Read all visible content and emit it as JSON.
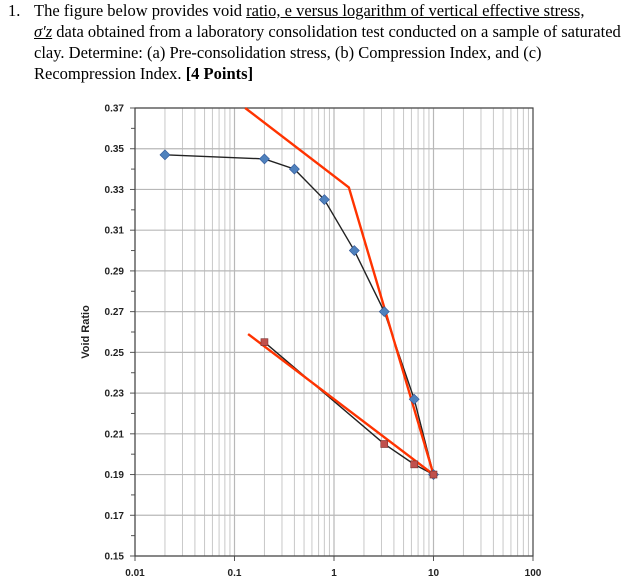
{
  "question": {
    "number": "1.",
    "text_1": "The figure below provides void ",
    "text_underlined": "ratio, e versus logarithm of vertical effective stress,",
    "symbol": "σ′z",
    "text_2": " data obtained from a laboratory consolidation test conducted on a sample of saturated clay. Determine: (a) Pre-consolidation stress, (b) Compression Index, and (c) Recompression Index. ",
    "points": "[4 Points]"
  },
  "chart_data": {
    "type": "line",
    "x_scale": "log",
    "xlim": [
      0.01,
      100
    ],
    "ylim": [
      0.15,
      0.37
    ],
    "ylabel": "Void Ratio",
    "xlabel": "",
    "x_tick_labels": [
      "0.01",
      "0.1",
      "1",
      "10",
      "100"
    ],
    "y_tick_labels": [
      "0.37",
      "0.35",
      "0.33",
      "0.31",
      "0.29",
      "0.27",
      "0.25",
      "0.23",
      "0.21",
      "0.19",
      "0.17",
      "0.15"
    ],
    "grid": true,
    "series": [
      {
        "marker": "diamond",
        "color": "#4f81bd",
        "x": [
          0.02,
          0.2,
          0.4,
          0.8,
          1.6,
          3.2,
          6.4,
          10
        ],
        "y": [
          0.347,
          0.345,
          0.34,
          0.325,
          0.3,
          0.27,
          0.227,
          0.19
        ]
      },
      {
        "marker": "square",
        "color": "#c0504d",
        "x": [
          10,
          6.4,
          3.2,
          0.2
        ],
        "y": [
          0.19,
          0.195,
          0.205,
          0.255
        ]
      }
    ],
    "construction_lines": [
      {
        "color": "#ff3300",
        "x": [
          0.128,
          1.41,
          10
        ],
        "y": [
          0.37,
          0.331,
          0.19
        ]
      },
      {
        "color": "#ff3300",
        "x": [
          0.137,
          10
        ],
        "y": [
          0.259,
          0.19
        ]
      }
    ]
  }
}
